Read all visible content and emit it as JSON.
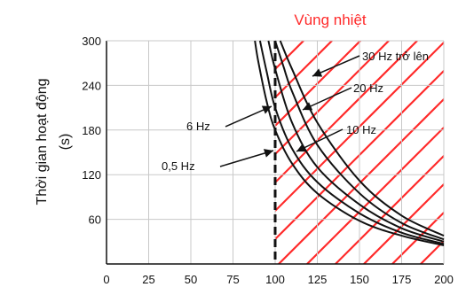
{
  "chart_data": {
    "type": "line",
    "ylabel": "Thời gian hoạt động",
    "ylabel_unit": "(s)",
    "xlim": [
      0,
      200
    ],
    "ylim": [
      0,
      300
    ],
    "x_ticks": [
      0,
      25,
      50,
      75,
      100,
      125,
      150,
      175,
      200
    ],
    "y_ticks": [
      60,
      120,
      180,
      240,
      300
    ],
    "region": {
      "label": "Vùng nhiệt",
      "x_from": 100,
      "x_to": 200
    },
    "series": [
      {
        "name": "0,5 Hz",
        "x": [
          88,
          90,
          95,
          100,
          110,
          125,
          150,
          175,
          200
        ],
        "y": [
          300,
          272,
          218,
          180,
          135,
          95,
          58,
          38,
          25
        ]
      },
      {
        "name": "6 Hz",
        "x": [
          91,
          95,
          100,
          110,
          125,
          150,
          175,
          200
        ],
        "y": [
          300,
          258,
          210,
          155,
          110,
          68,
          42,
          27
        ]
      },
      {
        "name": "10 Hz",
        "x": [
          96,
          100,
          110,
          125,
          150,
          175,
          200
        ],
        "y": [
          300,
          262,
          190,
          130,
          80,
          48,
          30
        ]
      },
      {
        "name": "20 Hz",
        "x": [
          100,
          105,
          110,
          125,
          150,
          175,
          200
        ],
        "y": [
          300,
          265,
          232,
          160,
          95,
          55,
          33
        ]
      },
      {
        "name": "30 Hz trở lên",
        "x": [
          103,
          110,
          125,
          150,
          175,
          200
        ],
        "y": [
          300,
          262,
          190,
          112,
          65,
          38
        ]
      }
    ],
    "colors": {
      "curve": "#111111",
      "region": "#ff2a2a"
    }
  }
}
